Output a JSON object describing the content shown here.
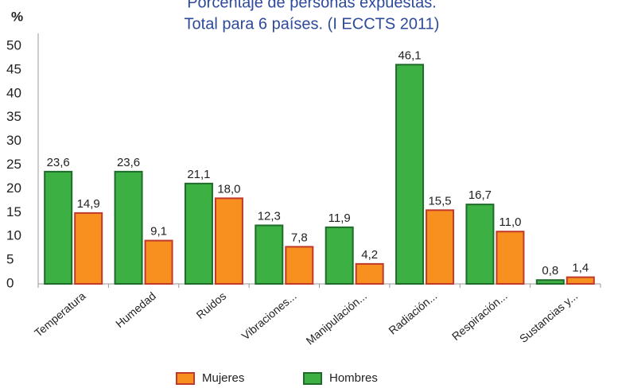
{
  "chart_data": {
    "type": "bar",
    "title": "Porcentaje de personas expuestas.",
    "subtitle": "Total para 6 países. (I ECCTS 2011)",
    "y_label": "%",
    "categories": [
      "Temperatura",
      "Humedad",
      "Ruidos",
      "Vibraciones...",
      "Manipulación...",
      "Radiación...",
      "Respiración...",
      "Sustancias y..."
    ],
    "series": [
      {
        "name": "Mujeres",
        "color": "#f7901e",
        "stroke": "#c0392b",
        "values": [
          14.9,
          9.1,
          18.0,
          7.8,
          4.2,
          15.5,
          11.0,
          1.4
        ],
        "value_labels": [
          "14,9",
          "9,1",
          "18,0",
          "7,8",
          "4,2",
          "15,5",
          "11,0",
          "1,4"
        ]
      },
      {
        "name": "Hombres",
        "color": "#3cb043",
        "stroke": "#1e6b2a",
        "values": [
          23.6,
          23.6,
          21.1,
          12.3,
          11.9,
          46.1,
          16.7,
          0.8
        ],
        "value_labels": [
          "23,6",
          "23,6",
          "21,1",
          "12,3",
          "11,9",
          "46,1",
          "16,7",
          "0,8"
        ]
      }
    ],
    "ylim": [
      0,
      50
    ],
    "yticks": [
      0,
      5,
      10,
      15,
      20,
      25,
      30,
      35,
      40,
      45,
      50
    ],
    "grid": false
  }
}
